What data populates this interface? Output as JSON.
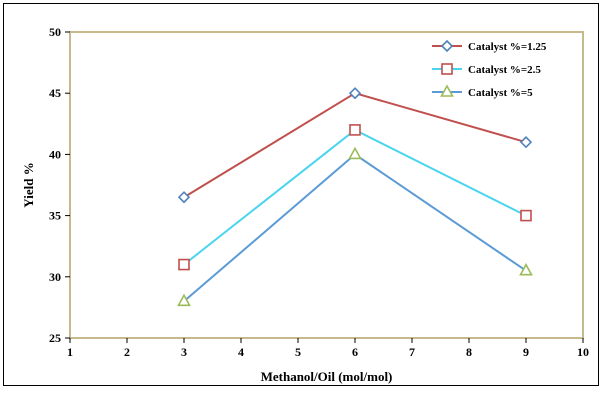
{
  "chart_data": {
    "type": "line",
    "title": "",
    "xlabel": "Methanol/Oil (mol/mol)",
    "ylabel": "Yield %",
    "xlim": [
      1,
      10
    ],
    "ylim": [
      25,
      50
    ],
    "x_ticks": [
      1,
      2,
      3,
      4,
      5,
      6,
      7,
      8,
      9,
      10
    ],
    "y_ticks": [
      25,
      30,
      35,
      40,
      45,
      50
    ],
    "grid": false,
    "legend_position": "top-right",
    "x": [
      3,
      6,
      9
    ],
    "series": [
      {
        "name": "Catalyst %=1.25",
        "values": [
          36.5,
          45,
          41
        ],
        "line_color": "#C0504D",
        "marker": "diamond",
        "marker_color": "#4F81BD"
      },
      {
        "name": "Catalyst %=2.5",
        "values": [
          31,
          42,
          35
        ],
        "line_color": "#4BD4F0",
        "marker": "square",
        "marker_color": "#C0504D"
      },
      {
        "name": "Catalyst %=5",
        "values": [
          28,
          40,
          30.5
        ],
        "line_color": "#5B9BD5",
        "marker": "triangle",
        "marker_color": "#9BBB59"
      }
    ],
    "plot_border_color": "#C8B98C",
    "frame_border_color": "#000000"
  }
}
